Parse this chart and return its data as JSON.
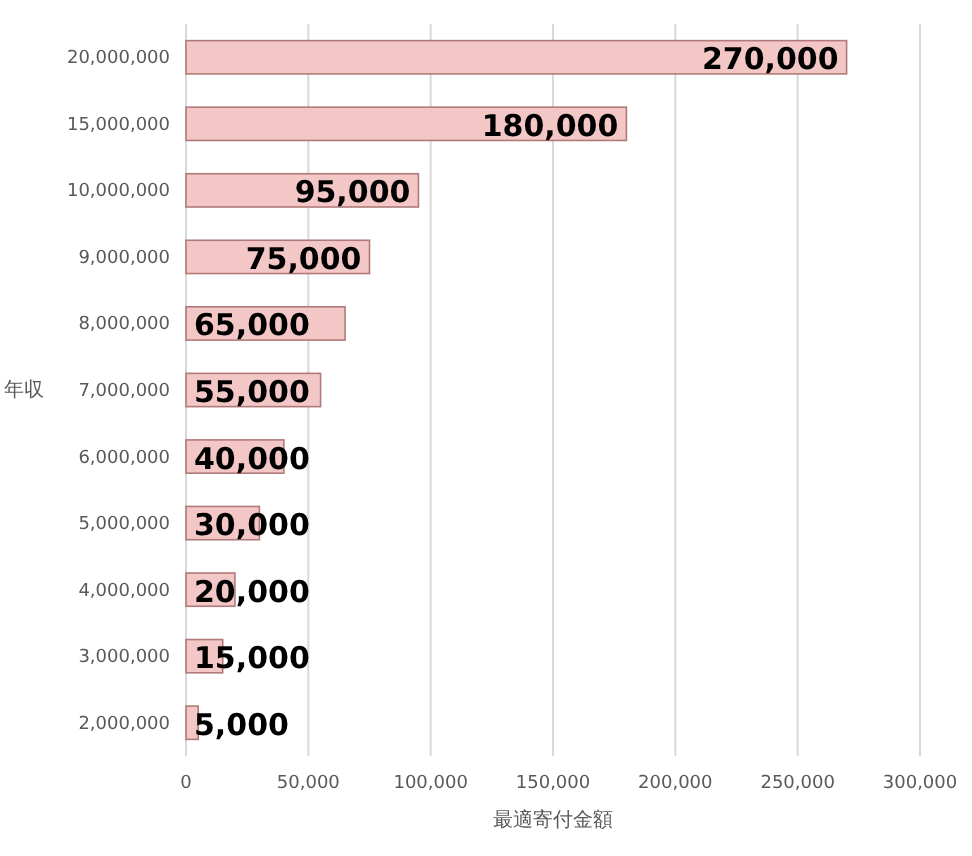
{
  "chart_data": {
    "type": "bar",
    "orientation": "horizontal",
    "xlabel": "最適寄付金額",
    "ylabel": "年収",
    "categories": [
      "20,000,000",
      "15,000,000",
      "10,000,000",
      "9,000,000",
      "8,000,000",
      "7,000,000",
      "6,000,000",
      "5,000,000",
      "4,000,000",
      "3,000,000",
      "2,000,000"
    ],
    "values": [
      270000,
      180000,
      95000,
      75000,
      65000,
      55000,
      40000,
      30000,
      20000,
      15000,
      5000
    ],
    "color": "#f4c7c7",
    "xlim": [
      0,
      300000
    ],
    "xticks": [
      {
        "value": 0,
        "label": "0"
      },
      {
        "value": 50000,
        "label": "50,000"
      },
      {
        "value": 100000,
        "label": "100,000"
      },
      {
        "value": 150000,
        "label": "150,000"
      },
      {
        "value": 200000,
        "label": "200,000"
      },
      {
        "value": 250000,
        "label": "250,000"
      },
      {
        "value": 300000,
        "label": "300,000"
      }
    ],
    "value_labels": [
      "270,000",
      "180,000",
      "95,000",
      "75,000",
      "65,000",
      "55,000",
      "40,000",
      "30,000",
      "20,000",
      "15,000",
      "5,000"
    ],
    "grid": "x"
  }
}
